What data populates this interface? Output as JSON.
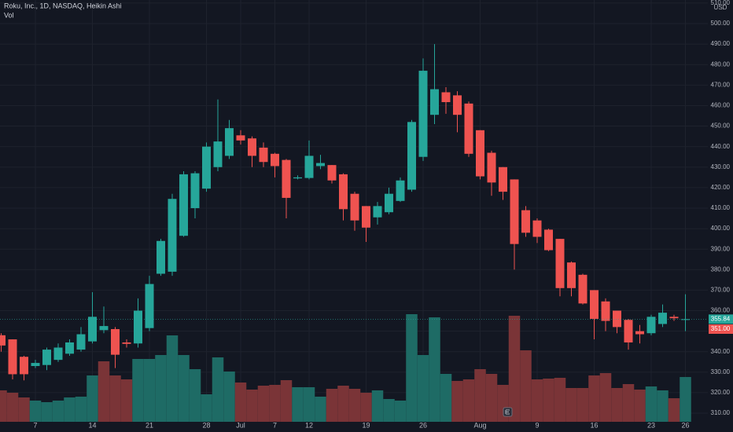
{
  "chart_data": {
    "type": "candlestick",
    "title": "Roku, Inc., 1D, NASDAQ, Heikin Ashi",
    "volume_title": "Vol",
    "currency": "USD",
    "categories": [
      null,
      null,
      null,
      "7",
      null,
      null,
      null,
      null,
      "14",
      null,
      null,
      null,
      null,
      "21",
      null,
      null,
      null,
      null,
      "28",
      null,
      null,
      "Jul",
      null,
      null,
      "7",
      null,
      null,
      "12",
      null,
      null,
      null,
      null,
      "19",
      null,
      null,
      null,
      null,
      "26",
      null,
      null,
      null,
      null,
      "Aug",
      null,
      null,
      null,
      null,
      "9",
      null,
      null,
      null,
      null,
      "16",
      null,
      null,
      null,
      null,
      "23",
      null,
      null,
      "26"
    ],
    "open": [
      348,
      346,
      337.5,
      333,
      333.5,
      336,
      339,
      341,
      345,
      350.5,
      351,
      344.5,
      344,
      351.5,
      378,
      379,
      396.5,
      410,
      419.5,
      430,
      435.5,
      445.5,
      444,
      439.5,
      436.5,
      433.5,
      424.5,
      424.7,
      430.5,
      431,
      426.5,
      417,
      411,
      405.5,
      408,
      413.5,
      419,
      435,
      455.5,
      466.5,
      465,
      461,
      448,
      437,
      430,
      424,
      409,
      404,
      399.5,
      395,
      383.5,
      377.5,
      370,
      364.5,
      360,
      355.5,
      350,
      349,
      353.5,
      357,
      355.5
    ],
    "high": [
      349,
      346,
      338,
      336,
      342,
      344,
      346,
      352,
      369,
      362,
      352,
      346,
      366,
      377,
      395,
      417,
      428,
      428,
      442,
      463,
      453,
      448,
      445,
      442,
      437,
      434,
      426,
      443,
      436,
      431,
      427,
      418,
      411,
      413,
      420,
      425,
      453,
      483,
      490,
      469,
      467,
      462,
      448,
      438,
      430,
      424,
      411,
      405,
      400,
      395,
      384,
      378,
      370,
      366,
      360,
      356,
      353,
      358,
      363,
      358,
      368
    ],
    "low": [
      340,
      326.5,
      326,
      332,
      331,
      335,
      338,
      340,
      344,
      349,
      332,
      342,
      342,
      350,
      377,
      377,
      396,
      405,
      418,
      428,
      434,
      441,
      430,
      430,
      425,
      405,
      424,
      424,
      429,
      422,
      404,
      399,
      393.5,
      402,
      407,
      413,
      418,
      433,
      451,
      456,
      447,
      435,
      424,
      416,
      414,
      380,
      396,
      393,
      389,
      367,
      367,
      363,
      346,
      350,
      349,
      341,
      344,
      348,
      352,
      355,
      350
    ],
    "close": [
      343,
      329,
      329,
      334.5,
      341,
      342,
      344.5,
      348.5,
      357,
      352.5,
      338.5,
      343.8,
      360,
      373,
      394,
      414.5,
      426.5,
      427,
      440,
      442.5,
      449,
      443,
      435.5,
      432.5,
      430.5,
      415,
      425,
      435.5,
      432,
      423.5,
      409.5,
      404,
      400.5,
      411,
      417,
      423.5,
      452,
      477,
      468,
      461.7,
      455.5,
      436.5,
      425.5,
      422.5,
      418,
      392.5,
      398,
      396,
      389.5,
      371,
      371,
      363.5,
      356,
      355,
      352,
      344.5,
      348.5,
      357,
      359,
      356.3,
      355.84
    ],
    "up_color": "#26a69a",
    "down_color": "#ef5350",
    "volume": {
      "values": [
        40,
        37,
        31,
        27,
        25,
        27,
        31,
        32,
        59,
        77,
        59,
        54,
        80,
        80,
        85,
        110,
        85,
        67,
        35,
        82,
        64,
        50,
        41,
        46,
        47,
        53,
        44,
        44,
        32,
        42,
        46,
        42,
        37,
        40,
        29,
        27,
        137,
        85,
        133,
        61,
        52,
        54,
        67,
        61,
        47,
        135,
        91,
        54,
        55,
        56,
        43,
        43,
        59,
        62,
        43,
        48,
        41,
        45,
        40,
        30,
        57
      ],
      "directions": [
        "down",
        "down",
        "down",
        "up",
        "up",
        "up",
        "up",
        "up",
        "up",
        "down",
        "down",
        "down",
        "up",
        "up",
        "up",
        "up",
        "up",
        "up",
        "up",
        "up",
        "up",
        "down",
        "down",
        "down",
        "down",
        "down",
        "up",
        "up",
        "up",
        "down",
        "down",
        "down",
        "down",
        "up",
        "up",
        "up",
        "up",
        "up",
        "up",
        "up",
        "down",
        "down",
        "down",
        "down",
        "down",
        "down",
        "down",
        "down",
        "down",
        "down",
        "down",
        "down",
        "down",
        "down",
        "down",
        "down",
        "down",
        "up",
        "up",
        "down",
        "up"
      ],
      "up_color": "#1e6b65",
      "down_color": "#7a3437"
    },
    "ylim": [
      305.8,
      511.5
    ],
    "yticks": [
      {
        "value": 310,
        "label": "310.00"
      },
      {
        "value": 320,
        "label": "320.00"
      },
      {
        "value": 330,
        "label": "330.00"
      },
      {
        "value": 340,
        "label": "340.00"
      },
      {
        "value": 350,
        "label": "350.00"
      },
      {
        "value": 360,
        "label": "360.00"
      },
      {
        "value": 370,
        "label": "370.00"
      },
      {
        "value": 380,
        "label": "380.00"
      },
      {
        "value": 390,
        "label": "390.00"
      },
      {
        "value": 400,
        "label": "400.00"
      },
      {
        "value": 410,
        "label": "410.00"
      },
      {
        "value": 420,
        "label": "420.00"
      },
      {
        "value": 430,
        "label": "430.00"
      },
      {
        "value": 440,
        "label": "440.00"
      },
      {
        "value": 450,
        "label": "450.00"
      },
      {
        "value": 460,
        "label": "460.00"
      },
      {
        "value": 470,
        "label": "470.00"
      },
      {
        "value": 480,
        "label": "480.00"
      },
      {
        "value": 490,
        "label": "490.00"
      },
      {
        "value": 500,
        "label": "500.00"
      },
      {
        "value": 510,
        "label": "510.00"
      }
    ],
    "price_labels": [
      {
        "value": 355.84,
        "label": "355.84",
        "color": "#26a69a"
      },
      {
        "value": 351,
        "label": "351.00",
        "color": "#ef5350"
      }
    ],
    "grid": true
  }
}
